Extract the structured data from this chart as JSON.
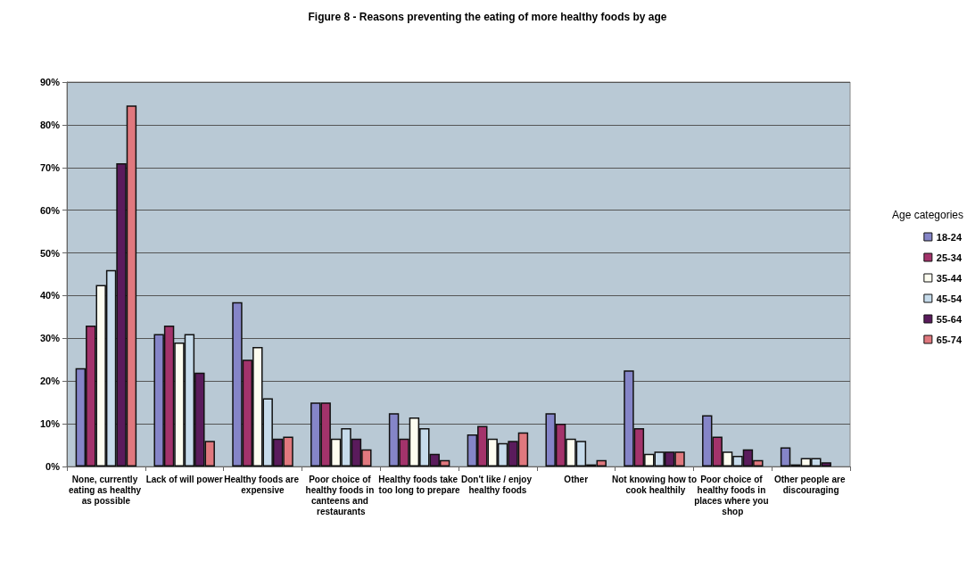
{
  "chart_data": {
    "type": "bar",
    "title": "Figure 8 - Reasons preventing the eating of more healthy foods by age",
    "categories": [
      "None, currently eating as healthy as possible",
      "Lack of will power",
      "Healthy foods are expensive",
      "Poor choice of healthy foods in canteens and restaurants",
      "Healthy foods take too long to prepare",
      "Don't like / enjoy healthy foods",
      "Other",
      "Not knowing how to cook healthily",
      "Poor choice of healthy foods in places where you shop",
      "Other people are discouraging"
    ],
    "series": [
      {
        "name": "18-24",
        "color": "#8585c8",
        "values": [
          23,
          31,
          38.5,
          15,
          12.5,
          7.5,
          12.5,
          22.5,
          12,
          4.5
        ]
      },
      {
        "name": "25-34",
        "color": "#a3336b",
        "values": [
          33,
          33,
          25,
          15,
          6.5,
          9.5,
          10,
          9,
          7,
          0.5
        ]
      },
      {
        "name": "35-44",
        "color": "#fdfdf0",
        "values": [
          42.5,
          29,
          28,
          6.5,
          11.5,
          6.5,
          6.5,
          3,
          3.5,
          2
        ]
      },
      {
        "name": "45-54",
        "color": "#c6dbeb",
        "values": [
          46,
          31,
          16,
          9,
          9,
          5.5,
          6,
          3.5,
          2.5,
          2
        ]
      },
      {
        "name": "55-64",
        "color": "#5a1b5c",
        "values": [
          71,
          22,
          6.5,
          6.5,
          3,
          6,
          0.5,
          3.5,
          4,
          1
        ]
      },
      {
        "name": "65-74",
        "color": "#e0787e",
        "values": [
          84.5,
          6,
          7,
          4,
          1.5,
          8,
          1.5,
          3.5,
          1.5,
          null
        ]
      }
    ],
    "legend_title": "Age categories",
    "legend": "right",
    "ylim": [
      0,
      90
    ],
    "yticks": [
      {
        "value": 0,
        "label": "0%"
      },
      {
        "value": 10,
        "label": "10%"
      },
      {
        "value": 20,
        "label": "20%"
      },
      {
        "value": 30,
        "label": "30%"
      },
      {
        "value": 40,
        "label": "40%"
      },
      {
        "value": 50,
        "label": "50%"
      },
      {
        "value": 60,
        "label": "60%"
      },
      {
        "value": 70,
        "label": "70%"
      },
      {
        "value": 80,
        "label": "80%"
      },
      {
        "value": 90,
        "label": "90%"
      }
    ],
    "grid": "y"
  }
}
